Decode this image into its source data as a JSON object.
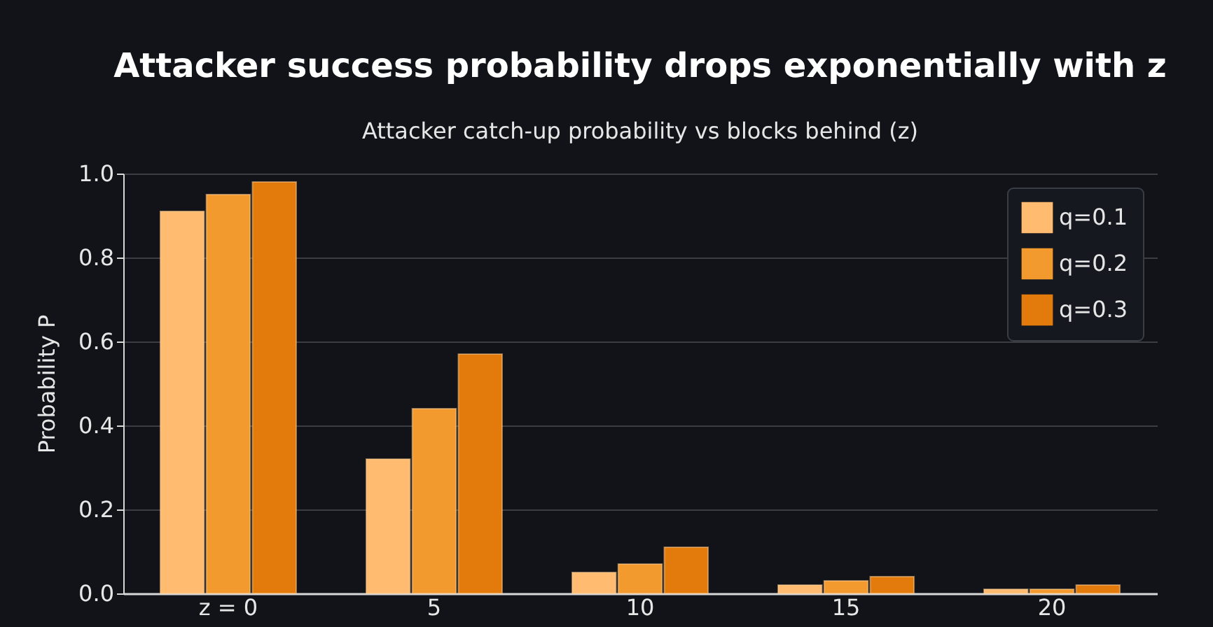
{
  "chart_data": {
    "type": "bar",
    "title": "Attacker success probability drops exponentially with z",
    "subtitle": "Attacker catch-up probability vs blocks behind (z)",
    "ylabel": "Probability P",
    "categories": [
      "z = 0",
      "5",
      "10",
      "15",
      "20"
    ],
    "series": [
      {
        "name": "q=0.1",
        "color": "#ffbb70",
        "values": [
          0.91,
          0.32,
          0.05,
          0.02,
          0.01
        ]
      },
      {
        "name": "q=0.2",
        "color": "#f39a2e",
        "values": [
          0.95,
          0.44,
          0.07,
          0.03,
          0.01
        ]
      },
      {
        "name": "q=0.3",
        "color": "#e27a0c",
        "values": [
          0.98,
          0.57,
          0.11,
          0.04,
          0.02
        ]
      }
    ],
    "ylim": [
      0,
      1.0
    ],
    "yticks": [
      {
        "value": 0,
        "label": "0.0"
      },
      0.2,
      0.4,
      0.6,
      0.8,
      {
        "value": 1,
        "label": "1.0"
      }
    ],
    "grid": "y",
    "legend": "top right"
  }
}
